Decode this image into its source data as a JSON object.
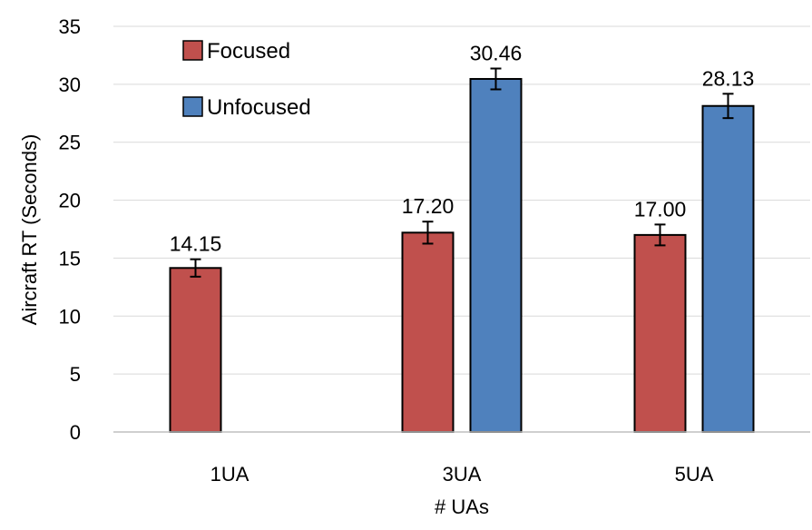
{
  "chart_data": {
    "type": "bar",
    "title": "",
    "xlabel": "# UAs",
    "ylabel": "Aircraft RT (Seconds)",
    "ylim": [
      0,
      35
    ],
    "yticks": [
      "0",
      "5",
      "10",
      "15",
      "20",
      "25",
      "30",
      "35"
    ],
    "categories": [
      "1UA",
      "3UA",
      "5UA"
    ],
    "grid": "horizontal",
    "legend_position": "top-left",
    "series": [
      {
        "name": "Focused",
        "color": "#c0504d",
        "values": [
          14.15,
          17.2,
          17.0
        ],
        "labels": [
          "14.15",
          "17.20",
          "17.00"
        ],
        "error": [
          0.75,
          0.95,
          0.9
        ]
      },
      {
        "name": "Unfocused",
        "color": "#4f81bd",
        "values": [
          null,
          30.46,
          28.13
        ],
        "labels": [
          "",
          "30.46",
          "28.13"
        ],
        "error": [
          null,
          0.9,
          1.05
        ]
      }
    ]
  }
}
